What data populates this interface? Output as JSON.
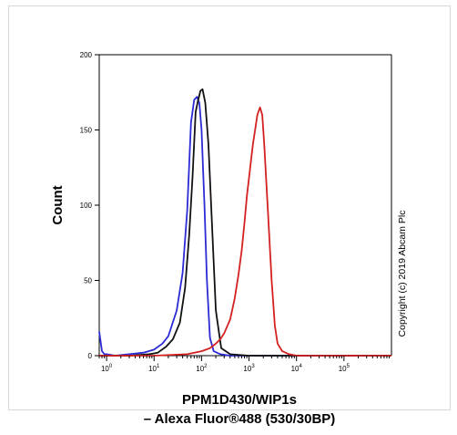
{
  "chart_data": {
    "type": "line",
    "title": "",
    "ylabel": "Count",
    "xlabel_line1": "PPM1D430/WIP1s",
    "xlabel_line2": "– Alexa Fluor®488 (530/30BP)",
    "copyright": "Copyright (c) 2019 Abcam Plc",
    "xscale": "log",
    "xlim": [
      0.7,
      1000000
    ],
    "ylim": [
      0,
      200
    ],
    "yticks": [
      0,
      50,
      100,
      150,
      200
    ],
    "xticks": [
      {
        "value": 1,
        "base": "10",
        "exp": "0"
      },
      {
        "value": 10,
        "base": "10",
        "exp": "1"
      },
      {
        "value": 100,
        "base": "10",
        "exp": "2"
      },
      {
        "value": 1000,
        "base": "10",
        "exp": "3"
      },
      {
        "value": 10000,
        "base": "10",
        "exp": "4"
      },
      {
        "value": 100000,
        "base": "10",
        "exp": "5"
      }
    ],
    "grid": false,
    "series": [
      {
        "color": "#2b2bd6",
        "x": [
          0.7,
          0.75,
          0.8,
          0.9,
          1,
          1.5,
          3,
          6,
          10,
          15,
          20,
          30,
          40,
          50,
          60,
          70,
          80,
          90,
          100,
          115,
          130,
          150,
          180,
          250,
          400,
          1000,
          10000,
          1000000
        ],
        "y": [
          16,
          9,
          3,
          1,
          1,
          0,
          1,
          2,
          4,
          8,
          13,
          30,
          55,
          97,
          155,
          170,
          172,
          168,
          150,
          100,
          50,
          12,
          3,
          1,
          0,
          0,
          0,
          0
        ]
      },
      {
        "color": "#111111",
        "x": [
          0.7,
          1,
          3,
          8,
          12,
          18,
          25,
          35,
          45,
          55,
          65,
          75,
          85,
          95,
          105,
          120,
          140,
          170,
          200,
          260,
          400,
          1000,
          10000,
          1000000
        ],
        "y": [
          0,
          0,
          0,
          1,
          2,
          6,
          11,
          22,
          45,
          80,
          120,
          162,
          170,
          176,
          177,
          168,
          140,
          80,
          30,
          5,
          1,
          0,
          0,
          0
        ]
      },
      {
        "color": "#d42020",
        "x": [
          0.7,
          10,
          50,
          100,
          150,
          200,
          250,
          300,
          400,
          500,
          600,
          700,
          800,
          900,
          1000,
          1200,
          1500,
          1700,
          1900,
          2100,
          2500,
          3000,
          3500,
          4000,
          5000,
          7000,
          10000,
          1000000
        ],
        "y": [
          0,
          0,
          1,
          3,
          5,
          8,
          11,
          15,
          24,
          38,
          54,
          70,
          88,
          106,
          118,
          140,
          160,
          165,
          160,
          140,
          96,
          50,
          20,
          8,
          3,
          1,
          0,
          0
        ]
      }
    ]
  }
}
